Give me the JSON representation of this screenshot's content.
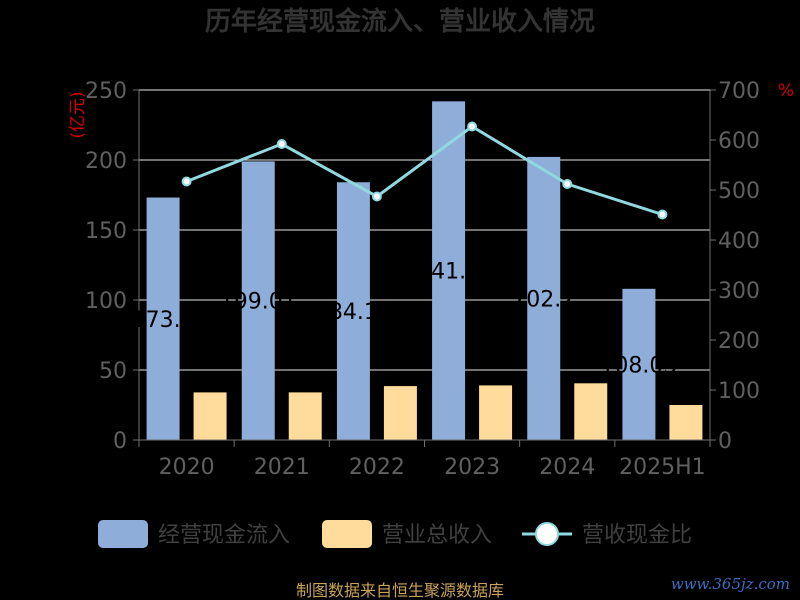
{
  "chart_data": {
    "type": "bar",
    "title": "历年经营现金流入、营业收入情况",
    "categories": [
      "2020",
      "2021",
      "2022",
      "2023",
      "2024",
      "2025H1"
    ],
    "series": [
      {
        "name": "经营现金流入",
        "type": "bar",
        "axis": "left",
        "color": "#8eadd8",
        "values": [
          173.2,
          199.0,
          184.1,
          241.9,
          202.2,
          108.0
        ],
        "labels": [
          "173.2",
          "199.01",
          "184.11",
          "241.9",
          "202.2",
          "108.03"
        ]
      },
      {
        "name": "营业总收入",
        "type": "bar",
        "axis": "left",
        "color": "#ffdb9c",
        "values": [
          34,
          34,
          38.5,
          39,
          40.5,
          25
        ]
      },
      {
        "name": "营收现金比",
        "type": "line",
        "axis": "right",
        "color": "#8fd9df",
        "values": [
          517,
          592,
          487,
          627,
          512,
          451
        ]
      }
    ],
    "ylabel": "(亿元)",
    "ylim": [
      0,
      250
    ],
    "yticks": [
      "0",
      "50",
      "100",
      "150",
      "200",
      "250"
    ],
    "y2label": "%",
    "y2lim": [
      0,
      700
    ],
    "y2ticks": [
      "0",
      "100",
      "200",
      "300",
      "400",
      "500",
      "600",
      "700"
    ],
    "grid": true,
    "legend_position": "bottom"
  },
  "source_text": "制图数据来自恒生聚源数据库",
  "watermark_text": "www.365jz.com"
}
